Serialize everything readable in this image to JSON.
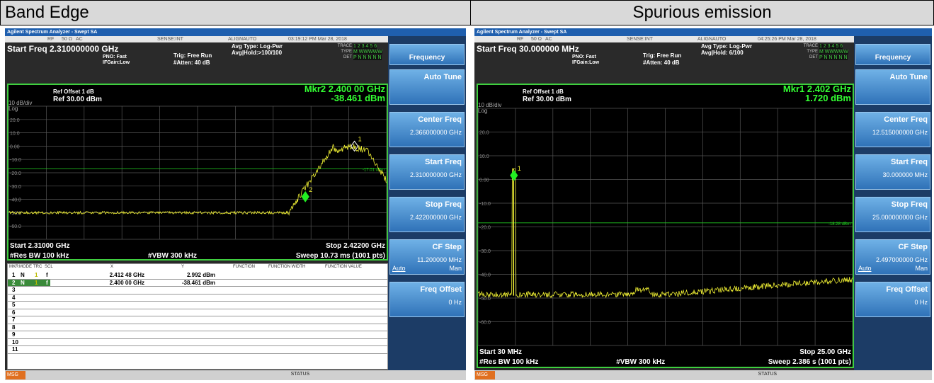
{
  "panels": [
    {
      "title": "Band Edge",
      "app_title": "Agilent Spectrum Analyzer - Swept SA",
      "status": [
        "RF",
        "50 Ω",
        "AC",
        "SENSE:INT",
        "ALIGNAUTO",
        "03:19:12 PM Mar 28, 2018"
      ],
      "start_freq": "Start Freq 2.310000000 GHz",
      "pno": "PNO: Fast",
      "ifgain": "IFGain:Low",
      "trig": "Trig: Free Run",
      "atten": "#Atten: 40 dB",
      "avg_type": "Avg Type: Log-Pwr",
      "avg_hold": "Avg|Hold:>100/100",
      "trace_info": [
        [
          "TRACE",
          "1 2 3 4 5 6"
        ],
        [
          "TYPE",
          "M WWWWW"
        ],
        [
          "DET",
          "P N N N N N"
        ]
      ],
      "ref_offset": "Ref Offset 1 dB",
      "ref": "Ref 30.00 dBm",
      "scale": "10 dB/div",
      "log": "Log",
      "marker_readout": [
        "Mkr2 2.400 00 GHz",
        "-38.461 dBm"
      ],
      "y_labels": [
        "20.0",
        "10.0",
        "0.00",
        "-10.0",
        "-20.0",
        "-30.0",
        "-40.0",
        "-50.0",
        "-60.0"
      ],
      "line_label": "-17.01 dBm",
      "markers": [
        "1",
        "2"
      ],
      "start": "Start 2.31000 GHz",
      "stop": "Stop 2.42200 GHz",
      "rbw": "#Res BW 100 kHz",
      "vbw": "#VBW 300 kHz",
      "sweep": "Sweep  10.73 ms (1001 pts)",
      "softkey_title": "Frequency",
      "softkeys": [
        {
          "label": "Auto Tune"
        },
        {
          "label": "Center Freq",
          "value": "2.366000000 GHz"
        },
        {
          "label": "Start Freq",
          "value": "2.310000000 GHz"
        },
        {
          "label": "Stop Freq",
          "value": "2.422000000 GHz"
        },
        {
          "label": "CF Step",
          "value": "11.200000 MHz",
          "auto": "Auto",
          "man": "Man"
        },
        {
          "label": "Freq Offset",
          "value": "0 Hz"
        }
      ],
      "table": {
        "headers": [
          "MKR",
          "MODE",
          "TRC",
          "SCL",
          "X",
          "Y",
          "FUNCTION",
          "FUNCTION WIDTH",
          "FUNCTION VALUE"
        ],
        "rows": [
          [
            "1",
            "N",
            "1",
            "f",
            "2.412 48 GHz",
            "2.992 dBm"
          ],
          [
            "2",
            "N",
            "1",
            "f",
            "2.400 00 GHz",
            "-38.461 dBm"
          ],
          [
            "3"
          ],
          [
            "4"
          ],
          [
            "5"
          ],
          [
            "6"
          ],
          [
            "7"
          ],
          [
            "8"
          ],
          [
            "9"
          ],
          [
            "10"
          ],
          [
            "11"
          ]
        ]
      },
      "msg": "MSG",
      "status_bar": "STATUS"
    },
    {
      "title": "Spurious emission",
      "app_title": "Agilent Spectrum Analyzer - Swept SA",
      "status": [
        "RF",
        "50 Ω",
        "AC",
        "SENSE:INT",
        "ALIGNAUTO",
        "04:25:26 PM Mar 28, 2018"
      ],
      "start_freq": "Start Freq 30.000000 MHz",
      "pno": "PNO: Fast",
      "ifgain": "IFGain:Low",
      "trig": "Trig: Free Run",
      "atten": "#Atten: 40 dB",
      "avg_type": "Avg Type: Log-Pwr",
      "avg_hold": "Avg|Hold: 6/100",
      "trace_info": [
        [
          "TRACE",
          "1 2 3 4 5 6"
        ],
        [
          "TYPE",
          "M WWWWW"
        ],
        [
          "DET",
          "P N N N N N"
        ]
      ],
      "ref_offset": "Ref Offset 1 dB",
      "ref": "Ref 30.00 dBm",
      "scale": "10 dB/div",
      "log": "Log",
      "marker_readout": [
        "Mkr1 2.402 GHz",
        "1.720 dBm"
      ],
      "y_labels": [
        "20.0",
        "10.0",
        "0.00",
        "-10.0",
        "-20.0",
        "-30.0",
        "-40.0",
        "-50.0",
        "-60.0"
      ],
      "line_label": "-18.28 dBm",
      "markers": [
        "1"
      ],
      "start": "Start 30 MHz",
      "stop": "Stop 25.00 GHz",
      "rbw": "#Res BW 100 kHz",
      "vbw": "#VBW 300 kHz",
      "sweep": "Sweep  2.386 s (1001 pts)",
      "softkey_title": "Frequency",
      "softkeys": [
        {
          "label": "Auto Tune"
        },
        {
          "label": "Center Freq",
          "value": "12.515000000 GHz"
        },
        {
          "label": "Start Freq",
          "value": "30.000000 MHz"
        },
        {
          "label": "Stop Freq",
          "value": "25.000000000 GHz"
        },
        {
          "label": "CF Step",
          "value": "2.497000000 GHz",
          "auto": "Auto",
          "man": "Man"
        },
        {
          "label": "Freq Offset",
          "value": "0 Hz"
        }
      ],
      "msg": "MSG",
      "status_bar": "STATUS"
    }
  ]
}
